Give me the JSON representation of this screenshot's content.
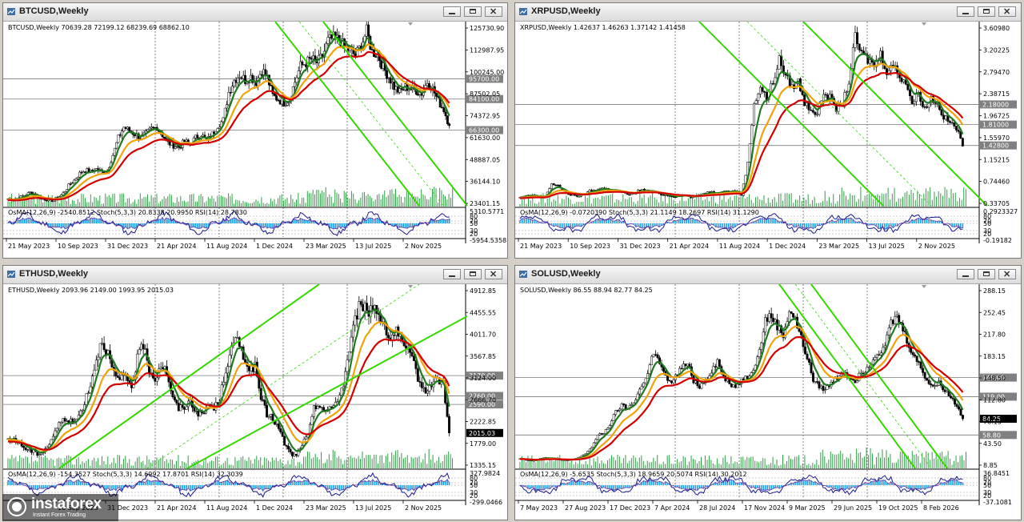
{
  "colors": {
    "ma_fast": "#1f7a1f",
    "ma_mid": "#f2a20a",
    "ma_slow": "#d40000",
    "channel": "#35d900",
    "candle": "#000000",
    "volume": "#2ea043",
    "osma": "#1aa0e8",
    "stoch": "#1a1a8c",
    "rsi": "#7a3aa8",
    "hline": "#7a7a7a",
    "tag_bg": "#808080",
    "last_bg": "#000000"
  },
  "windows": [
    {
      "title": "BTCUSD,Weekly",
      "header": "BTCUSD,Weekly  70639.28 72199.12 68239.69 68862.10",
      "osc_label": "OsMA(12,26,9) -2540.8512  Stoch(5,3,3) 20.8338 20.9950  RSI(14) 28.7830",
      "osc_scale": [
        "5310.5771",
        "80",
        "70",
        "50",
        "30",
        "20",
        "-5954.5358"
      ],
      "price_labels": [
        "125730.90",
        "112987.95",
        "100245.00",
        "87502.05",
        "74372.95",
        "61630.00",
        "48887.05",
        "36144.10",
        "23401.15"
      ],
      "level_tags": [
        "95700.00",
        "84100.00",
        "66300.00"
      ],
      "last_price": "",
      "dates": [
        "21 May 2023",
        "10 Sep 2023",
        "31 Dec 2023",
        "21 Apr 2024",
        "11 Aug 2024",
        "1 Dec 2024",
        "23 Mar 2025",
        "13 Jul 2025",
        "2 Nov 2025"
      ]
    },
    {
      "title": "XRPUSD,Weekly",
      "header": "XRPUSD,Weekly  1.42637 1.46263 1.37142 1.41458",
      "osc_label": "OsMA(12,26,9) -0.0720390  Stoch(5,3,3) 21.1149 18.2697  RSI(14) 31.1290",
      "osc_scale": [
        "0.2923327",
        "80",
        "70",
        "50",
        "30",
        "20",
        "-0.19182"
      ],
      "price_labels": [
        "3.60980",
        "3.20225",
        "2.79470",
        "2.38715",
        "1.96725",
        "1.55970",
        "1.15215",
        "0.74460",
        "0.33705"
      ],
      "level_tags": [
        "2.18000",
        "1.81000",
        "1.42800"
      ],
      "last_price": "",
      "dates": [
        "21 May 2023",
        "10 Sep 2023",
        "31 Dec 2023",
        "21 Apr 2024",
        "11 Aug 2024",
        "1 Dec 2024",
        "23 Mar 2025",
        "13 Jul 2025",
        "2 Nov 2025"
      ]
    },
    {
      "title": "ETHUSD,Weekly",
      "header": "ETHUSD,Weekly  2093.96 2149.00 1993.95 2015.03",
      "osc_label": "OsMA(12,26,9) -154.3527  Stoch(5,3,3) 14.6992 17.8701  RSI(14) 32.3039",
      "osc_scale": [
        "327.9824",
        "80",
        "70",
        "50",
        "30",
        "20",
        "-299.0466"
      ],
      "price_labels": [
        "4912.85",
        "4455.55",
        "4011.70",
        "3567.85",
        "3124.00",
        "2666.70",
        "2222.85",
        "1779.00",
        "1335.15"
      ],
      "level_tags": [
        "3170.00",
        "2760.00",
        "2590.00"
      ],
      "last_price": "2015.03",
      "dates": [
        "",
        "10 Sep 2023",
        "31 Dec 2023",
        "21 Apr 2024",
        "11 Aug 2024",
        "1 Dec 2024",
        "23 Mar 2025",
        "13 Jul 2025",
        "2 Nov 2025"
      ]
    },
    {
      "title": "SOLUSD,Weekly",
      "header": "SOLUSD,Weekly  86.55 88.94 82.77 84.25",
      "osc_label": "OsMA(12,26,9) -5.6535  Stoch(5,3,3) 18.9659 20.5074  RSI(14) 30.2012",
      "osc_scale": [
        "36.8451",
        "80",
        "70",
        "50",
        "30",
        "20",
        "-37.1081"
      ],
      "price_labels": [
        "288.15",
        "252.45",
        "217.80",
        "183.15",
        "148.50",
        "112.80",
        "78.15",
        "43.50",
        "8.85"
      ],
      "level_tags": [
        "149.00",
        "119.00",
        "58.80"
      ],
      "last_price": "84.25",
      "dates": [
        "7 May 2023",
        "27 Aug 2023",
        "17 Dec 2023",
        "7 Apr 2024",
        "28 Jul 2024",
        "17 Nov 2024",
        "9 Mar 2025",
        "29 Jun 2025",
        "19 Oct 2025",
        "8 Feb 2026"
      ]
    }
  ],
  "logo": {
    "name": "instaforex",
    "tagline": "Instant Forex Trading"
  },
  "chart_data": [
    {
      "type": "candlestick",
      "symbol": "BTCUSD",
      "timeframe": "Weekly",
      "ohlc_last": {
        "open": 70639.28,
        "high": 72199.12,
        "low": 68239.69,
        "close": 68862.1
      },
      "ylim": [
        23401.15,
        125730.9
      ],
      "x_dates": [
        "21 May 2023",
        "10 Sep 2023",
        "31 Dec 2023",
        "21 Apr 2024",
        "11 Aug 2024",
        "1 Dec 2024",
        "23 Mar 2025",
        "13 Jul 2025",
        "2 Nov 2025"
      ],
      "close_path": [
        27000,
        26500,
        27500,
        29000,
        30500,
        29500,
        27000,
        26500,
        26000,
        27500,
        30000,
        34500,
        37500,
        41500,
        43500,
        42500,
        44000,
        42500,
        43000,
        52000,
        62000,
        68000,
        66000,
        64000,
        62000,
        64000,
        67000,
        68000,
        63500,
        59000,
        57500,
        56500,
        60000,
        58000,
        62000,
        64000,
        60000,
        64000,
        69000,
        72000,
        88000,
        95000,
        98000,
        95000,
        97000,
        94000,
        101000,
        96500,
        86000,
        84000,
        82000,
        84000,
        94000,
        103000,
        105000,
        107000,
        105000,
        108500,
        117500,
        119000,
        118000,
        114000,
        112000,
        109000,
        115000,
        123000,
        111000,
        110000,
        102000,
        97000,
        91000,
        88000,
        91000,
        90000,
        89000,
        87500,
        94000,
        90000,
        83000,
        78000,
        68862
      ],
      "ma_levels": {
        "ma_fast_last": 93500,
        "ma_mid_last": 78000,
        "ma_slow_last": 68000
      },
      "horizontal_levels": [
        95700,
        84100,
        66300
      ],
      "oscillators": {
        "OsMA": -2540.8512,
        "Stoch_K": 20.8338,
        "Stoch_D": 20.995,
        "RSI": 28.783
      }
    },
    {
      "type": "candlestick",
      "symbol": "XRPUSD",
      "timeframe": "Weekly",
      "ohlc_last": {
        "open": 1.42637,
        "high": 1.46263,
        "low": 1.37142,
        "close": 1.41458
      },
      "ylim": [
        0.33705,
        3.6098
      ],
      "x_dates": [
        "21 May 2023",
        "10 Sep 2023",
        "31 Dec 2023",
        "21 Apr 2024",
        "11 Aug 2024",
        "1 Dec 2024",
        "23 Mar 2025",
        "13 Jul 2025",
        "2 Nov 2025"
      ],
      "close_path": [
        0.47,
        0.5,
        0.52,
        0.48,
        0.5,
        0.72,
        0.68,
        0.58,
        0.52,
        0.5,
        0.52,
        0.6,
        0.62,
        0.65,
        0.62,
        0.6,
        0.58,
        0.52,
        0.55,
        0.62,
        0.6,
        0.58,
        0.54,
        0.52,
        0.5,
        0.5,
        0.52,
        0.48,
        0.5,
        0.55,
        0.58,
        0.56,
        0.6,
        0.58,
        0.6,
        0.52,
        1.1,
        2.2,
        2.5,
        2.3,
        2.6,
        3.0,
        2.7,
        2.5,
        2.6,
        2.2,
        2.1,
        2.0,
        2.4,
        2.3,
        2.1,
        2.2,
        2.6,
        3.4,
        3.1,
        3.0,
        2.9,
        3.1,
        2.8,
        2.9,
        2.7,
        2.6,
        2.2,
        2.4,
        2.1,
        2.3,
        2.2,
        1.95,
        1.85,
        1.75,
        1.41458
      ],
      "ma_levels": {
        "ma_fast_last": 2.15,
        "ma_mid_last": 1.6,
        "ma_slow_last": 1.42
      },
      "horizontal_levels": [
        2.18,
        1.81,
        1.428
      ],
      "oscillators": {
        "OsMA": -0.072039,
        "Stoch_K": 21.1149,
        "Stoch_D": 18.2697,
        "RSI": 31.129
      }
    },
    {
      "type": "candlestick",
      "symbol": "ETHUSD",
      "timeframe": "Weekly",
      "ohlc_last": {
        "open": 2093.96,
        "high": 2149.0,
        "low": 1993.95,
        "close": 2015.03
      },
      "ylim": [
        1335.15,
        4912.85
      ],
      "x_dates": [
        "10 Sep 2023",
        "31 Dec 2023",
        "21 Apr 2024",
        "11 Aug 2024",
        "1 Dec 2024",
        "23 Mar 2025",
        "13 Jul 2025",
        "2 Nov 2025"
      ],
      "close_path": [
        1850,
        1900,
        1800,
        1700,
        1650,
        1600,
        1650,
        1800,
        2050,
        2250,
        2300,
        2200,
        2350,
        2650,
        3000,
        3500,
        3900,
        3600,
        3200,
        3050,
        3150,
        2950,
        3500,
        3800,
        3300,
        3100,
        3400,
        3250,
        2700,
        2500,
        2550,
        2650,
        2450,
        2350,
        2600,
        2500,
        2700,
        3300,
        3700,
        3900,
        3600,
        3300,
        3350,
        2700,
        2400,
        2300,
        2100,
        1800,
        1600,
        1550,
        1800,
        1950,
        2500,
        2600,
        2450,
        2500,
        2700,
        3000,
        3700,
        4300,
        4700,
        4400,
        4600,
        4400,
        4200,
        3900,
        4100,
        3800,
        3600,
        3400,
        3000,
        2900,
        3000,
        3100,
        3000,
        2015.03
      ],
      "ma_levels": {
        "ma_fast_last": 3100,
        "ma_mid_last": 2800,
        "ma_slow_last": 2550
      },
      "horizontal_levels": [
        3170,
        2760,
        2590
      ],
      "oscillators": {
        "OsMA": -154.3527,
        "Stoch_K": 14.6992,
        "Stoch_D": 17.8701,
        "RSI": 32.3039
      }
    },
    {
      "type": "candlestick",
      "symbol": "SOLUSD",
      "timeframe": "Weekly",
      "ohlc_last": {
        "open": 86.55,
        "high": 88.94,
        "low": 82.77,
        "close": 84.25
      },
      "ylim": [
        8.85,
        288.15
      ],
      "x_dates": [
        "7 May 2023",
        "27 Aug 2023",
        "17 Dec 2023",
        "7 Apr 2024",
        "28 Jul 2024",
        "17 Nov 2024",
        "9 Mar 2025",
        "29 Jun 2025",
        "19 Oct 2025",
        "8 Feb 2026"
      ],
      "close_path": [
        22,
        20,
        19,
        20,
        24,
        22,
        21,
        20,
        19,
        21,
        24,
        30,
        40,
        58,
        62,
        75,
        95,
        105,
        100,
        110,
        130,
        145,
        185,
        180,
        155,
        140,
        150,
        165,
        170,
        145,
        135,
        145,
        160,
        175,
        150,
        140,
        135,
        145,
        150,
        165,
        190,
        240,
        245,
        230,
        215,
        255,
        240,
        210,
        180,
        145,
        135,
        130,
        140,
        150,
        160,
        150,
        145,
        155,
        165,
        180,
        190,
        200,
        235,
        245,
        225,
        200,
        180,
        165,
        145,
        135,
        140,
        130,
        118,
        105,
        84.25
      ],
      "ma_levels": {
        "ma_fast_last": 150,
        "ma_mid_last": 135,
        "ma_slow_last": 118
      },
      "horizontal_levels": [
        149,
        119,
        58.8
      ],
      "oscillators": {
        "OsMA": -5.6535,
        "Stoch_K": 18.9659,
        "Stoch_D": 20.5074,
        "RSI": 30.2012
      }
    }
  ]
}
